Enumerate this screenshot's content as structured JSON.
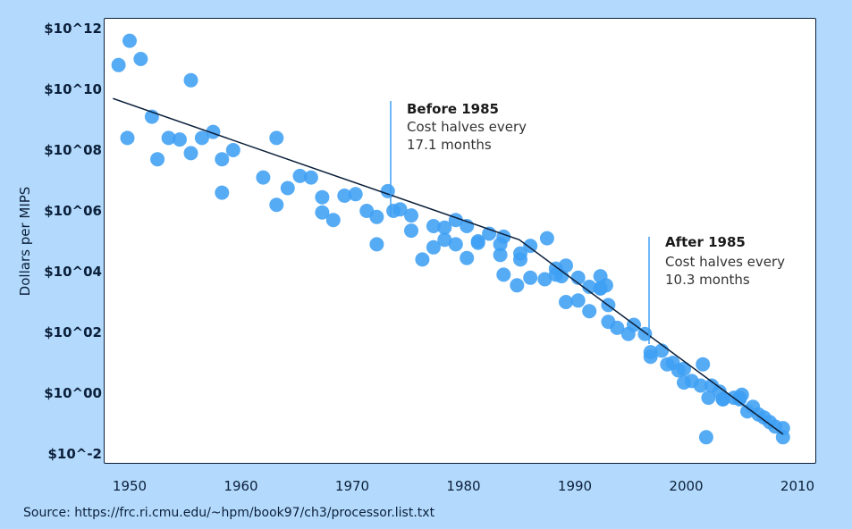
{
  "chart_data": {
    "type": "scatter",
    "title": "",
    "ylabel": "Dollars per MIPS",
    "xlabel": "",
    "y_scale": "log10",
    "xlim": [
      1948.5,
      2010.5
    ],
    "ylim_exponent": [
      -2.1,
      12.25
    ],
    "x_ticks": [
      "1950",
      "1960",
      "1970",
      "1980",
      "1990",
      "2000",
      "2010"
    ],
    "y_ticks": [
      "$10^12",
      "$10^10",
      "$10^08",
      "$10^06",
      "$10^04",
      "$10^02",
      "$10^00",
      "$10^-2"
    ],
    "grid": false,
    "point_color": "#3f9ff4",
    "trend_color": "#0b1f3a",
    "trend_line": [
      [
        1948.5,
        9.7
      ],
      [
        1985,
        5.05
      ],
      [
        2008.7,
        -1.35
      ]
    ],
    "points": [
      [
        1949,
        10.8
      ],
      [
        1950,
        11.6
      ],
      [
        1949.8,
        8.4
      ],
      [
        1951,
        11.0
      ],
      [
        1952,
        9.1
      ],
      [
        1952.5,
        7.7
      ],
      [
        1953.5,
        8.4
      ],
      [
        1954.5,
        8.35
      ],
      [
        1955.5,
        10.3
      ],
      [
        1955.5,
        7.9
      ],
      [
        1956.5,
        8.4
      ],
      [
        1957.5,
        8.6
      ],
      [
        1958.3,
        7.7
      ],
      [
        1958.3,
        6.6
      ],
      [
        1959.3,
        8.0
      ],
      [
        1962,
        7.1
      ],
      [
        1963.2,
        8.4
      ],
      [
        1963.2,
        6.2
      ],
      [
        1964.2,
        6.75
      ],
      [
        1965.3,
        7.15
      ],
      [
        1966.3,
        7.1
      ],
      [
        1967.3,
        6.45
      ],
      [
        1967.3,
        5.95
      ],
      [
        1968.3,
        5.7
      ],
      [
        1969.3,
        6.5
      ],
      [
        1970.3,
        6.55
      ],
      [
        1971.3,
        6.0
      ],
      [
        1972.2,
        5.8
      ],
      [
        1972.2,
        4.9
      ],
      [
        1973.2,
        6.65
      ],
      [
        1973.7,
        6.0
      ],
      [
        1974.3,
        6.05
      ],
      [
        1975.3,
        5.85
      ],
      [
        1975.3,
        5.35
      ],
      [
        1976.3,
        4.4
      ],
      [
        1977.3,
        5.5
      ],
      [
        1977.3,
        4.8
      ],
      [
        1978.3,
        5.45
      ],
      [
        1978.3,
        5.05
      ],
      [
        1979.3,
        5.7
      ],
      [
        1979.3,
        4.9
      ],
      [
        1980.3,
        5.5
      ],
      [
        1980.3,
        4.45
      ],
      [
        1981.3,
        4.95
      ],
      [
        1981.3,
        5.0
      ],
      [
        1982.3,
        5.25
      ],
      [
        1983.3,
        4.9
      ],
      [
        1983.3,
        4.55
      ],
      [
        1983.6,
        5.15
      ],
      [
        1983.6,
        3.9
      ],
      [
        1984.8,
        3.55
      ],
      [
        1985.1,
        4.4
      ],
      [
        1985.1,
        4.6
      ],
      [
        1986,
        4.85
      ],
      [
        1986,
        3.8
      ],
      [
        1987.3,
        3.75
      ],
      [
        1987.5,
        5.1
      ],
      [
        1988.3,
        4.1
      ],
      [
        1988.3,
        3.9
      ],
      [
        1988.8,
        3.85
      ],
      [
        1989.2,
        4.2
      ],
      [
        1989.2,
        3.0
      ],
      [
        1990.3,
        3.8
      ],
      [
        1990.3,
        3.05
      ],
      [
        1991.3,
        3.5
      ],
      [
        1991.3,
        2.7
      ],
      [
        1992.3,
        3.85
      ],
      [
        1992.3,
        3.45
      ],
      [
        1992.3,
        3.45
      ],
      [
        1992.8,
        3.55
      ],
      [
        1993,
        2.9
      ],
      [
        1993,
        2.35
      ],
      [
        1993.8,
        2.15
      ],
      [
        1994.8,
        1.95
      ],
      [
        1995.3,
        2.25
      ],
      [
        1996.3,
        1.95
      ],
      [
        1996.8,
        1.35
      ],
      [
        1996.8,
        1.2
      ],
      [
        1997.8,
        1.4
      ],
      [
        1998.8,
        1.0
      ],
      [
        1998.3,
        0.95
      ],
      [
        1999.3,
        0.75
      ],
      [
        1999.8,
        0.8
      ],
      [
        1999.8,
        0.35
      ],
      [
        2000.5,
        0.4
      ],
      [
        2001.3,
        0.25
      ],
      [
        2002.3,
        0.25
      ],
      [
        2001.5,
        0.95
      ],
      [
        2002,
        -0.15
      ],
      [
        2003,
        0.05
      ],
      [
        2003.3,
        -0.2
      ],
      [
        2004.3,
        -0.15
      ],
      [
        2004.8,
        -0.2
      ],
      [
        2005,
        -0.05
      ],
      [
        2005.5,
        -0.6
      ],
      [
        2006,
        -0.45
      ],
      [
        2006.5,
        -0.7
      ],
      [
        2007,
        -0.8
      ],
      [
        2007.5,
        -0.95
      ],
      [
        2008,
        -1.1
      ],
      [
        2008.7,
        -1.15
      ],
      [
        2008.7,
        -1.45
      ],
      [
        2001.8,
        -1.45
      ],
      [
        2003.3,
        -0.2
      ],
      [
        2004.8,
        -0.15
      ]
    ],
    "annotations": [
      {
        "title": "Before 1985",
        "lines": [
          "Cost halves every",
          "17.1 months"
        ]
      },
      {
        "title": "After 1985",
        "lines": [
          "Cost halves every",
          "10.3 months"
        ]
      }
    ]
  },
  "source": "Source: https://frc.ri.cmu.edu/~hpm/book97/ch3/processor.list.txt"
}
